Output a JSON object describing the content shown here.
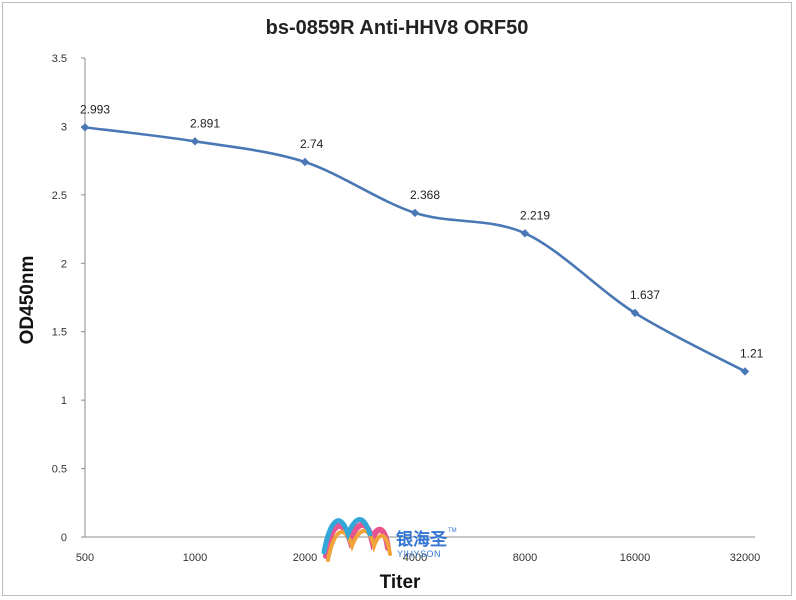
{
  "chart_data": {
    "type": "line",
    "title": "bs-0859R Anti-HHV8 ORF50",
    "xlabel": "Titer",
    "ylabel": "OD450nm",
    "categories": [
      "500",
      "1000",
      "2000",
      "4000",
      "8000",
      "16000",
      "32000"
    ],
    "series": [
      {
        "values": [
          2.993,
          2.891,
          2.74,
          2.368,
          2.219,
          1.637,
          1.21
        ],
        "labels": [
          "2.993",
          "2.891",
          "2.74",
          "2.368",
          "2.219",
          "1.637",
          "1.21"
        ],
        "color": "#4a78b5"
      }
    ],
    "ylim": [
      0,
      3.5
    ],
    "yticks": [
      "0",
      "0.5",
      "1",
      "1.5",
      "2",
      "2.5",
      "3",
      "3.5"
    ],
    "yticks_values": [
      0,
      0.5,
      1,
      1.5,
      2,
      2.5,
      3,
      3.5
    ],
    "grid": false,
    "legend": "none"
  },
  "watermark": {
    "name_cn": "银海圣",
    "name_en": "YIHYSON",
    "tm": "TM",
    "icon": "wave-logo-icon"
  }
}
